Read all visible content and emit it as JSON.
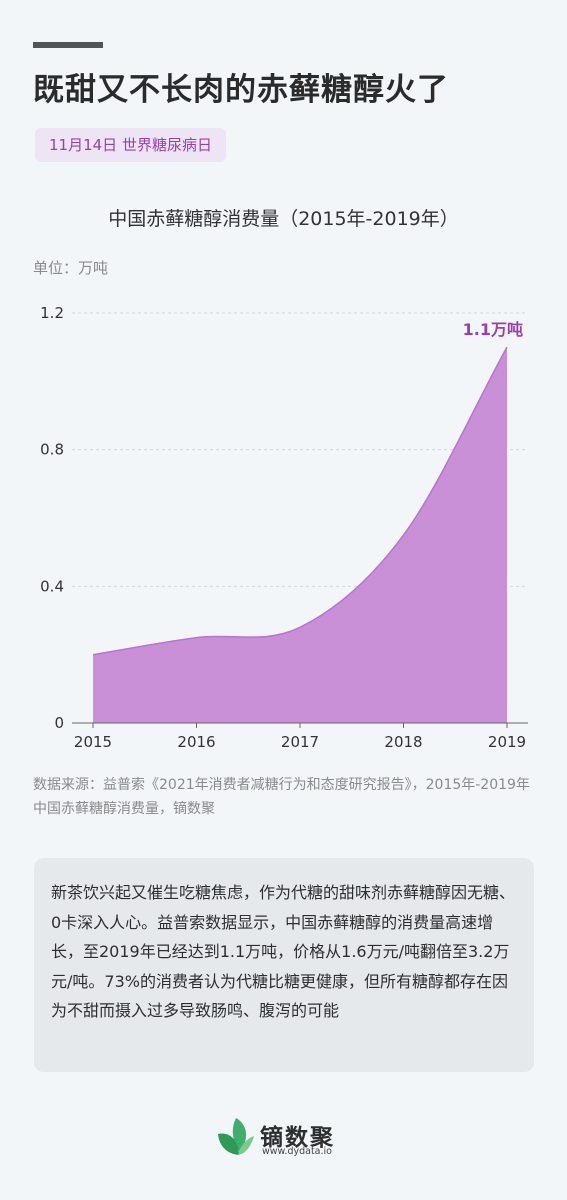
{
  "headline": "既甜又不长肉的赤藓糖醇火了",
  "date_badge": "11月14日 世界糖尿病日",
  "unit": "单位：万吨",
  "source": "数据来源：益普索《2021年消费者减糖行为和态度研究报告》，2015年-2019年中国赤藓糖醇消费量，镝数聚",
  "description": "新茶饮兴起又催生吃糖焦虑，作为代糖的甜味剂赤藓糖醇因无糖、0卡深入人心。益普索数据显示，中国赤藓糖醇的消费量高速增长，至2019年已经达到1.1万吨，价格从1.6万元/吨翻倍至3.2万元/吨。73%的消费者认为代糖比糖更健康，但所有糖醇都存在因为不甜而摄入过多导致肠鸣、腹泻的可能",
  "brand": {
    "name": "镝数聚",
    "url": "www.dydata.io"
  },
  "colors": {
    "accent": "#9a3fb1",
    "area_fill": "#c990d8",
    "area_stroke": "#b873ce"
  },
  "chart_data": {
    "type": "area",
    "title": "中国赤藓糖醇消费量（2015年-2019年）",
    "xlabel": "",
    "ylabel": "单位：万吨",
    "x": [
      "2015",
      "2016",
      "2017",
      "2018",
      "2019"
    ],
    "series": [
      {
        "values": [
          0.2,
          0.25,
          0.28,
          0.55,
          1.1
        ]
      }
    ],
    "ylim": [
      0,
      1.2
    ],
    "yticks": [
      "0",
      "0.4",
      "0.8",
      "1.2"
    ],
    "grid": true,
    "annotation": {
      "x": "2019",
      "text": "1.1万吨"
    }
  }
}
